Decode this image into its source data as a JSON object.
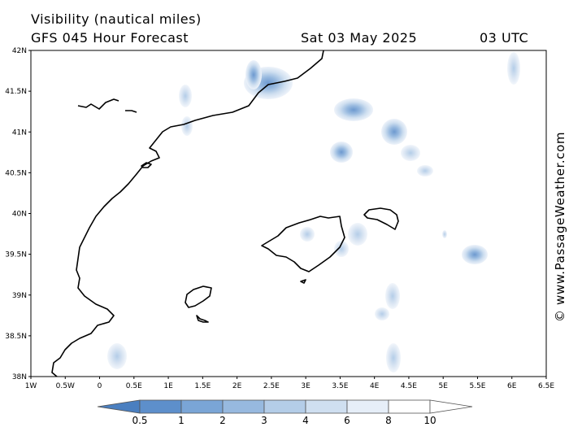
{
  "header": {
    "title": "Visibility (nautical miles)",
    "forecast": "GFS 045 Hour Forecast",
    "date": "Sat 03 May 2025",
    "time": "03 UTC"
  },
  "map": {
    "lat_labels": [
      "42N",
      "41.5N",
      "41N",
      "40.5N",
      "40N",
      "39.5N",
      "39N",
      "38.5N",
      "38N"
    ],
    "lon_labels": [
      "1W",
      "0.5W",
      "0",
      "0.5E",
      "1E",
      "1.5E",
      "2E",
      "2.5E",
      "3E",
      "3.5E",
      "4E",
      "4.5E",
      "5E",
      "5.5E",
      "6E",
      "6.5E"
    ],
    "lat_range": [
      38,
      42
    ],
    "lon_range": [
      -1,
      6.5
    ],
    "land_color": "#ffffff",
    "coast_color": "#000000"
  },
  "legend": {
    "labels": [
      "0.5",
      "1",
      "2",
      "3",
      "4",
      "6",
      "8",
      "10"
    ],
    "colors": [
      "#4a7fc0",
      "#5d8fcb",
      "#7aa5d6",
      "#97b9df",
      "#b4cde8",
      "#cfdff0",
      "#e6eef8",
      "#ffffff"
    ]
  },
  "credit": "© www.PassageWeather.com"
}
